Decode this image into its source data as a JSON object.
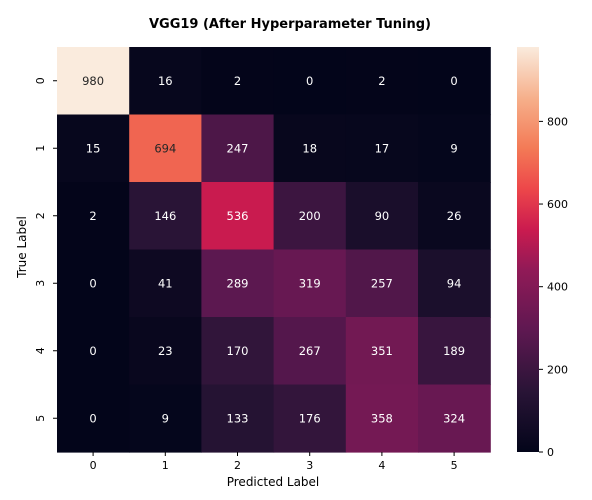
{
  "chart_data": {
    "type": "heatmap",
    "title": "VGG19 (After Hyperparameter Tuning)",
    "xlabel": "Predicted Label",
    "ylabel": "True Label",
    "x_categories": [
      "0",
      "1",
      "2",
      "3",
      "4",
      "5"
    ],
    "y_categories": [
      "0",
      "1",
      "2",
      "3",
      "4",
      "5"
    ],
    "values": [
      [
        980,
        16,
        2,
        0,
        2,
        0
      ],
      [
        15,
        694,
        247,
        18,
        17,
        9
      ],
      [
        2,
        146,
        536,
        200,
        90,
        26
      ],
      [
        0,
        41,
        289,
        319,
        257,
        94
      ],
      [
        0,
        23,
        170,
        267,
        351,
        189
      ],
      [
        0,
        9,
        133,
        176,
        358,
        324
      ]
    ],
    "colorbar": {
      "colormap": "rocket",
      "range": [
        0,
        980
      ],
      "ticks": [
        0,
        200,
        400,
        600,
        800
      ]
    }
  }
}
